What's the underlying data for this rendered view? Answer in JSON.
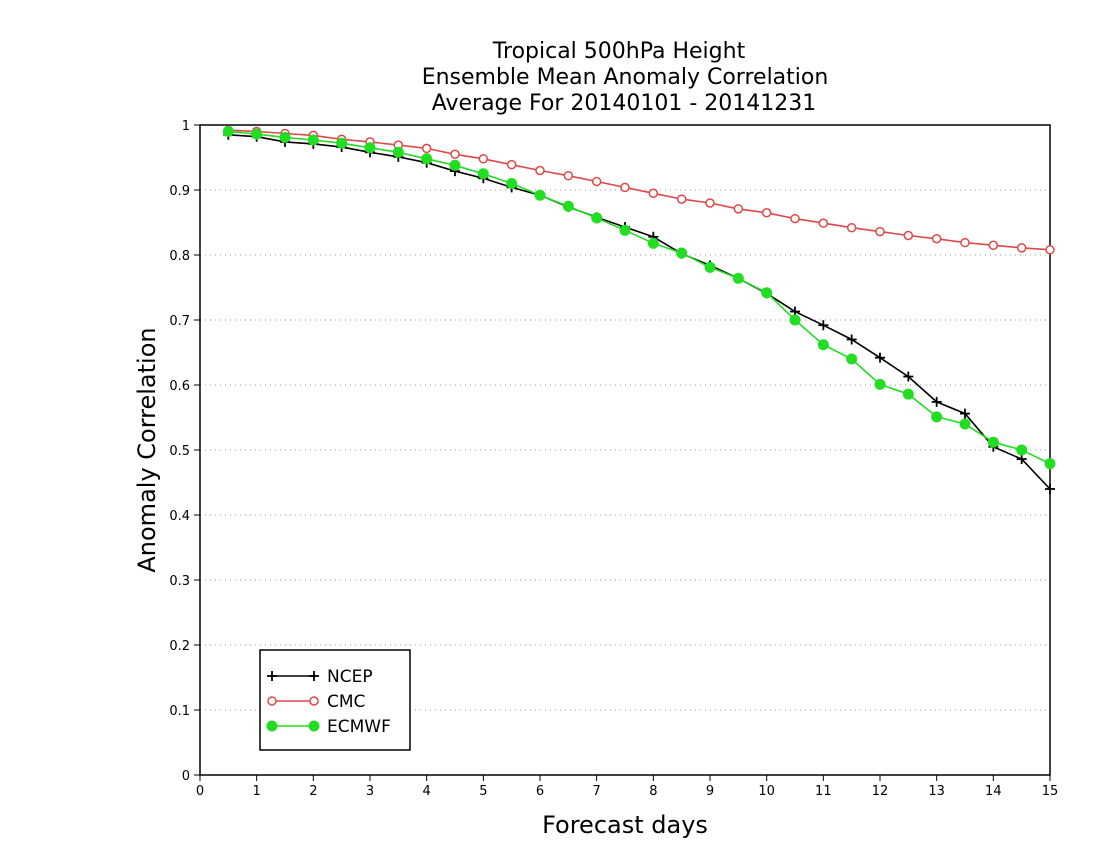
{
  "chart_data": {
    "type": "line",
    "title_lines": [
      "Tropical 500hPa Height",
      "Ensemble Mean Anomaly Correlation",
      "Average For 20140101 - 20141231"
    ],
    "xlabel": "Forecast days",
    "ylabel": "Anomaly Correlation",
    "xlim": [
      0,
      15
    ],
    "ylim": [
      0,
      1
    ],
    "x_ticks": [
      "0",
      "1",
      "2",
      "3",
      "4",
      "5",
      "6",
      "7",
      "8",
      "9",
      "10",
      "11",
      "12",
      "13",
      "14",
      "15"
    ],
    "y_ticks": [
      "0",
      "0.1",
      "0.2",
      "0.3",
      "0.4",
      "0.5",
      "0.6",
      "0.7",
      "0.8",
      "0.9",
      "1"
    ],
    "grid": true,
    "legend_position": "bottom-left",
    "x": [
      0.5,
      1,
      1.5,
      2,
      2.5,
      3,
      3.5,
      4,
      4.5,
      5,
      5.5,
      6,
      6.5,
      7,
      7.5,
      8,
      8.5,
      9,
      9.5,
      10,
      10.5,
      11,
      11.5,
      12,
      12.5,
      13,
      13.5,
      14,
      14.5,
      15
    ],
    "series": [
      {
        "name": "NCEP",
        "color": "#000000",
        "marker": "plus",
        "values": [
          0.985,
          0.982,
          0.974,
          0.971,
          0.966,
          0.958,
          0.951,
          0.942,
          0.929,
          0.918,
          0.904,
          0.892,
          0.874,
          0.858,
          0.843,
          0.828,
          0.802,
          0.784,
          0.764,
          0.741,
          0.713,
          0.692,
          0.67,
          0.642,
          0.613,
          0.574,
          0.556,
          0.505,
          0.486,
          0.44
        ]
      },
      {
        "name": "CMC",
        "color": "#e04848",
        "marker": "open-circle",
        "values": [
          0.992,
          0.99,
          0.987,
          0.984,
          0.978,
          0.974,
          0.969,
          0.964,
          0.955,
          0.948,
          0.939,
          0.93,
          0.922,
          0.913,
          0.904,
          0.895,
          0.886,
          0.88,
          0.871,
          0.865,
          0.856,
          0.849,
          0.842,
          0.836,
          0.83,
          0.825,
          0.819,
          0.815,
          0.811,
          0.808
        ]
      },
      {
        "name": "ECMWF",
        "color": "#22dd22",
        "marker": "filled-circle",
        "values": [
          0.99,
          0.986,
          0.981,
          0.977,
          0.972,
          0.965,
          0.958,
          0.948,
          0.938,
          0.925,
          0.91,
          0.892,
          0.875,
          0.857,
          0.838,
          0.818,
          0.803,
          0.781,
          0.764,
          0.742,
          0.7,
          0.662,
          0.64,
          0.601,
          0.586,
          0.551,
          0.54,
          0.512,
          0.5,
          0.479
        ]
      }
    ]
  }
}
